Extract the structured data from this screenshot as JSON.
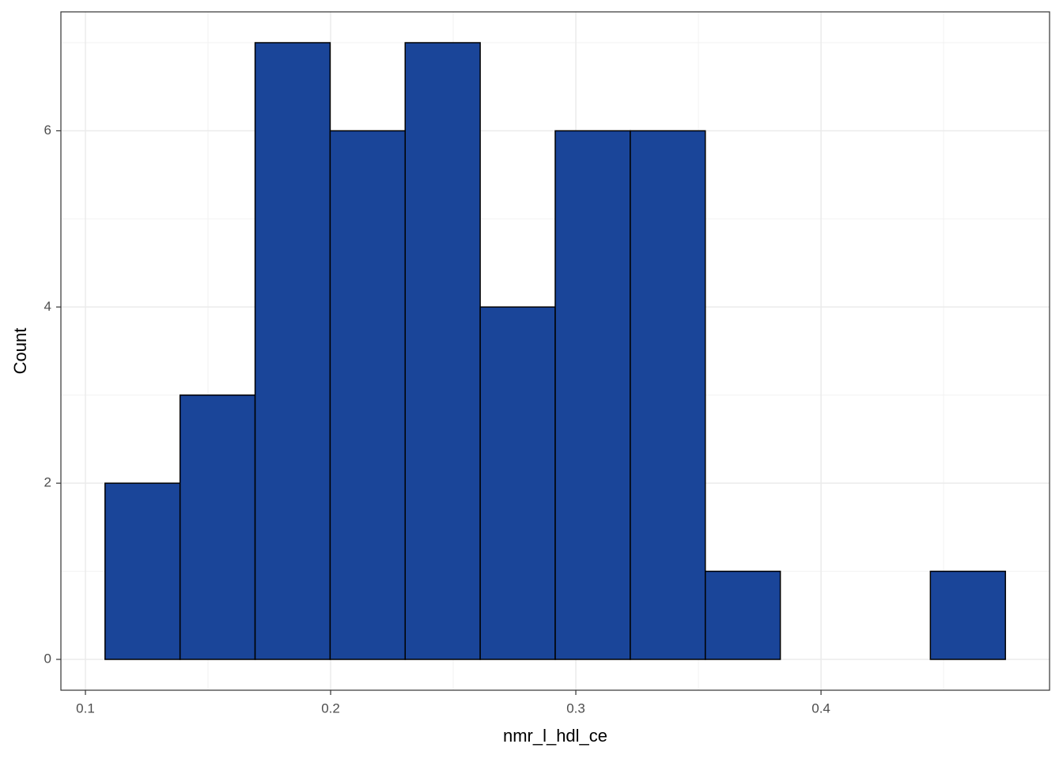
{
  "chart_data": {
    "type": "histogram",
    "x_label": "nmr_l_hdl_ce",
    "y_label": "Count",
    "bins": [
      0.108,
      0.1386,
      0.1692,
      0.1998,
      0.2304,
      0.261,
      0.2916,
      0.3222,
      0.3528,
      0.3834,
      0.414,
      0.4446,
      0.4752
    ],
    "counts": [
      2,
      3,
      7,
      6,
      7,
      4,
      6,
      6,
      1,
      0,
      0,
      1
    ],
    "color": "#1a4599",
    "edge_color": "#000000",
    "xlim": [
      0.09,
      0.4932
    ],
    "xticks": [
      0.1,
      0.2,
      0.3,
      0.4
    ],
    "ylim": [
      -0.35,
      7.35
    ],
    "yticks": [
      0,
      2,
      4,
      6
    ],
    "grid": true
  }
}
